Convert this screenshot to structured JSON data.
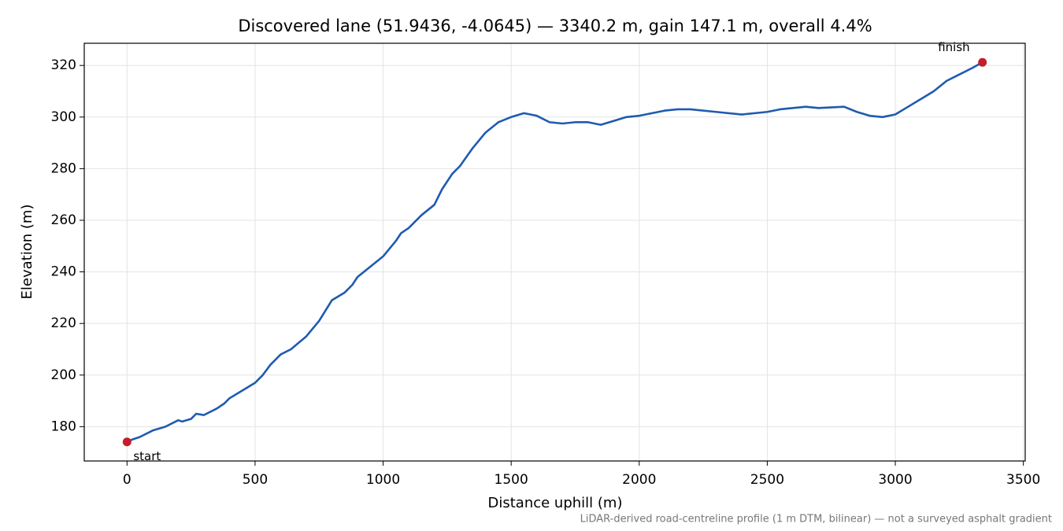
{
  "chart_data": {
    "type": "line",
    "title": "Discovered lane (51.9436, -4.0645) — 3340.2 m, gain 147.1 m, overall 4.4%",
    "x_label": "Distance uphill (m)",
    "y_label": "Elevation (m)",
    "footnote": "LiDAR-derived road-centreline profile (1 m DTM, bilinear) — not a surveyed asphalt gradient",
    "xlim": [
      -167,
      3507.2
    ],
    "ylim": [
      166.7,
      328.6
    ],
    "xticks": [
      0,
      500,
      1000,
      1500,
      2000,
      2500,
      3000,
      3500
    ],
    "yticks": [
      180,
      200,
      220,
      240,
      260,
      280,
      300,
      320
    ],
    "grid": true,
    "series": [
      {
        "color": "#1f5bb0",
        "x": [
          0,
          20,
          50,
          100,
          150,
          200,
          215,
          250,
          270,
          300,
          350,
          380,
          400,
          450,
          500,
          530,
          560,
          600,
          640,
          700,
          750,
          800,
          850,
          880,
          900,
          950,
          1000,
          1050,
          1070,
          1100,
          1150,
          1200,
          1230,
          1270,
          1300,
          1350,
          1400,
          1450,
          1500,
          1550,
          1600,
          1650,
          1700,
          1750,
          1800,
          1850,
          1900,
          1950,
          2000,
          2050,
          2100,
          2150,
          2200,
          2300,
          2400,
          2500,
          2550,
          2600,
          2650,
          2700,
          2800,
          2850,
          2900,
          2950,
          3000,
          3050,
          3100,
          3150,
          3200,
          3250,
          3300,
          3340.2
        ],
        "values": [
          174.1,
          175,
          176,
          178.5,
          180,
          182.5,
          182,
          183,
          185,
          184.5,
          187,
          189,
          191,
          194,
          197,
          200,
          204,
          208,
          210,
          215,
          221,
          229,
          232,
          235,
          238,
          242,
          246,
          252,
          255,
          257,
          262,
          266,
          272,
          278,
          281,
          288,
          294,
          298,
          300,
          301.5,
          300.5,
          298,
          297.5,
          298,
          298,
          297,
          298.5,
          300,
          300.5,
          301.5,
          302.5,
          303,
          303,
          302,
          301,
          302,
          303,
          303.5,
          304,
          303.5,
          304,
          302,
          300.5,
          300,
          301,
          304,
          307,
          310,
          314,
          316.5,
          319,
          321.2
        ]
      }
    ],
    "markers": {
      "color": "#c41e2a",
      "labels": [
        "start",
        "finish"
      ],
      "x": [
        0,
        3340.2
      ],
      "values": [
        174.1,
        321.2
      ]
    }
  }
}
